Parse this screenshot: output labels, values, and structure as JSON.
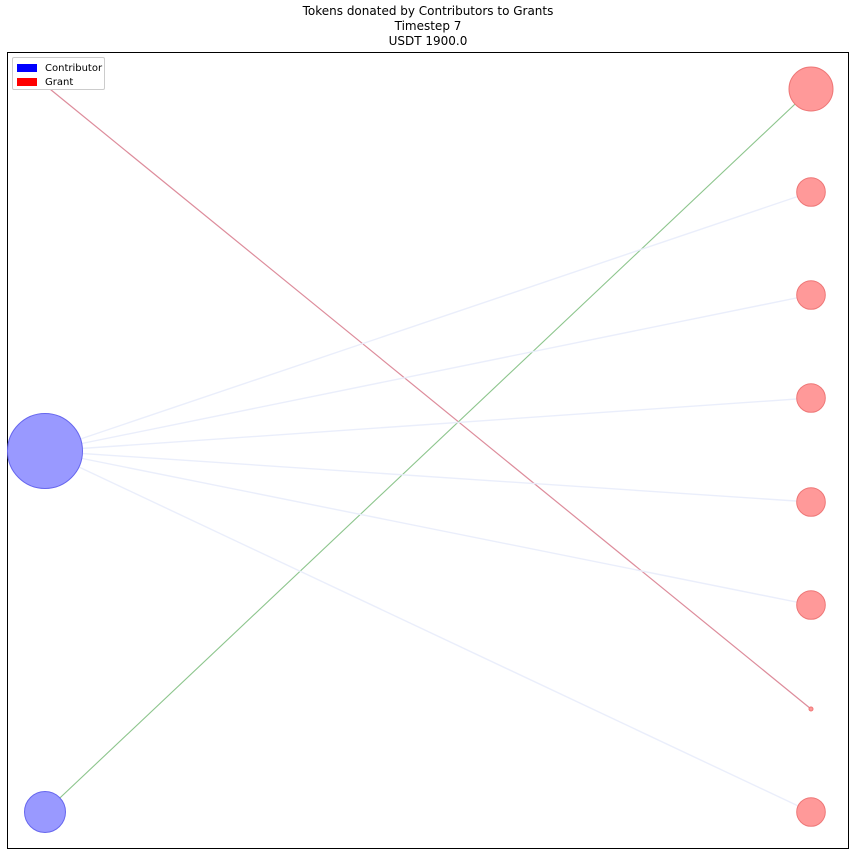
{
  "title": {
    "line1": "Tokens donated by Contributors to Grants",
    "line2": "Timestep 7",
    "line3": "USDT 1900.0"
  },
  "legend": {
    "placement": "top-left",
    "items": [
      {
        "label": "Contributor",
        "color": "#0000ff"
      },
      {
        "label": "Grant",
        "color": "#ff0000"
      }
    ]
  },
  "colors": {
    "contributor_fill": "#9999ff",
    "contributor_stroke": "#6666ee",
    "grant_fill": "#ff9999",
    "grant_stroke": "#ee7777",
    "edge_green": "#7fbf7f",
    "edge_red": "#d98090",
    "edge_faint": "#e8ecfb"
  },
  "graph": {
    "contributors": [
      {
        "id": "c0",
        "size": 3.0
      },
      {
        "id": "c1",
        "size": 1.0
      },
      {
        "id": "c2",
        "size": 0.0
      }
    ],
    "grants": [
      {
        "id": "g0",
        "size": 1.0
      },
      {
        "id": "g1",
        "size": 0.65
      },
      {
        "id": "g2",
        "size": 0.65
      },
      {
        "id": "g3",
        "size": 0.65
      },
      {
        "id": "g4",
        "size": 0.65
      },
      {
        "id": "g5",
        "size": 0.65
      },
      {
        "id": "g6",
        "size": 0.05
      },
      {
        "id": "g7",
        "size": 0.65
      }
    ],
    "edges": [
      {
        "from": "c2",
        "to": "g6",
        "color": "red"
      },
      {
        "from": "c1",
        "to": "g0",
        "color": "green"
      },
      {
        "from": "c0",
        "to": "g1",
        "color": "faint"
      },
      {
        "from": "c0",
        "to": "g2",
        "color": "faint"
      },
      {
        "from": "c0",
        "to": "g3",
        "color": "faint"
      },
      {
        "from": "c0",
        "to": "g4",
        "color": "faint"
      },
      {
        "from": "c0",
        "to": "g5",
        "color": "faint"
      },
      {
        "from": "c0",
        "to": "g7",
        "color": "faint"
      }
    ]
  }
}
